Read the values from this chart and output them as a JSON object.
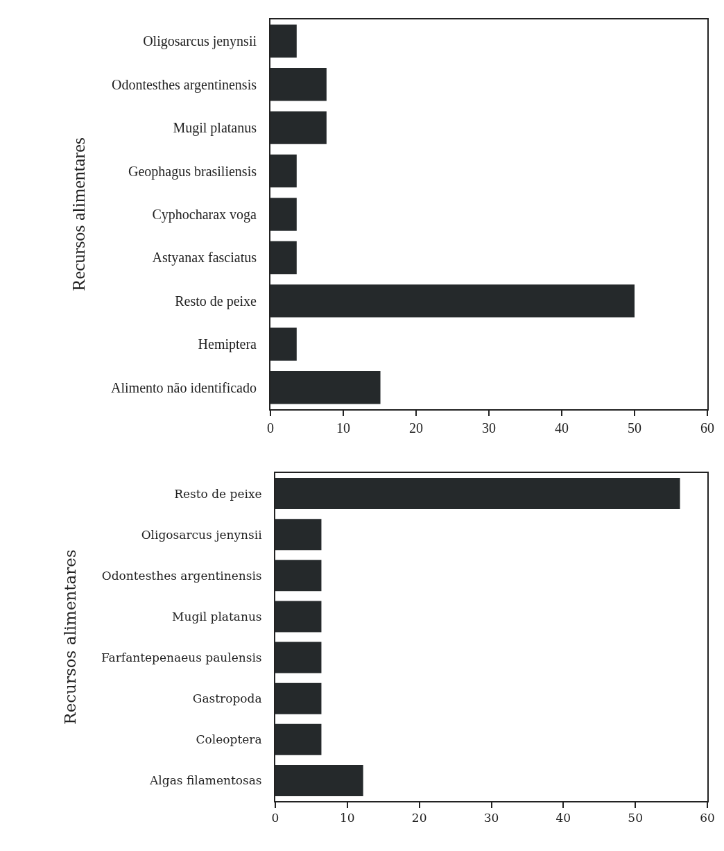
{
  "chart_data": [
    {
      "type": "bar",
      "orientation": "horizontal",
      "ylabel": "Recursos alimentares",
      "categories": [
        "Oligosarcus jenynsii",
        "Odontesthes argentinensis",
        "Mugil platanus",
        "Geophagus brasiliensis",
        "Cyphocharax voga",
        "Astyanax fasciatus",
        "Resto de peixe",
        "Hemiptera",
        "Alimento não identificado"
      ],
      "values": [
        3.6,
        7.7,
        7.7,
        3.6,
        3.6,
        3.6,
        50,
        3.6,
        15.1
      ],
      "color": "#25292b",
      "xlim": [
        0,
        60
      ],
      "xticks": [
        0,
        10,
        20,
        30,
        40,
        50,
        60
      ]
    },
    {
      "type": "bar",
      "orientation": "horizontal",
      "ylabel": "Recursos alimentares",
      "categories": [
        "Resto de peixe",
        "Oligosarcus jenynsii",
        "Odontesthes argentinensis",
        "Mugil platanus",
        "Farfantepenaeus paulensis",
        "Gastropoda",
        "Coleoptera",
        "Algas filamentosas"
      ],
      "values": [
        56.2,
        6.4,
        6.4,
        6.4,
        6.4,
        6.4,
        6.4,
        12.2
      ],
      "color": "#25292b",
      "xlim": [
        0,
        60
      ],
      "xticks": [
        0,
        10,
        20,
        30,
        40,
        50,
        60
      ]
    }
  ]
}
